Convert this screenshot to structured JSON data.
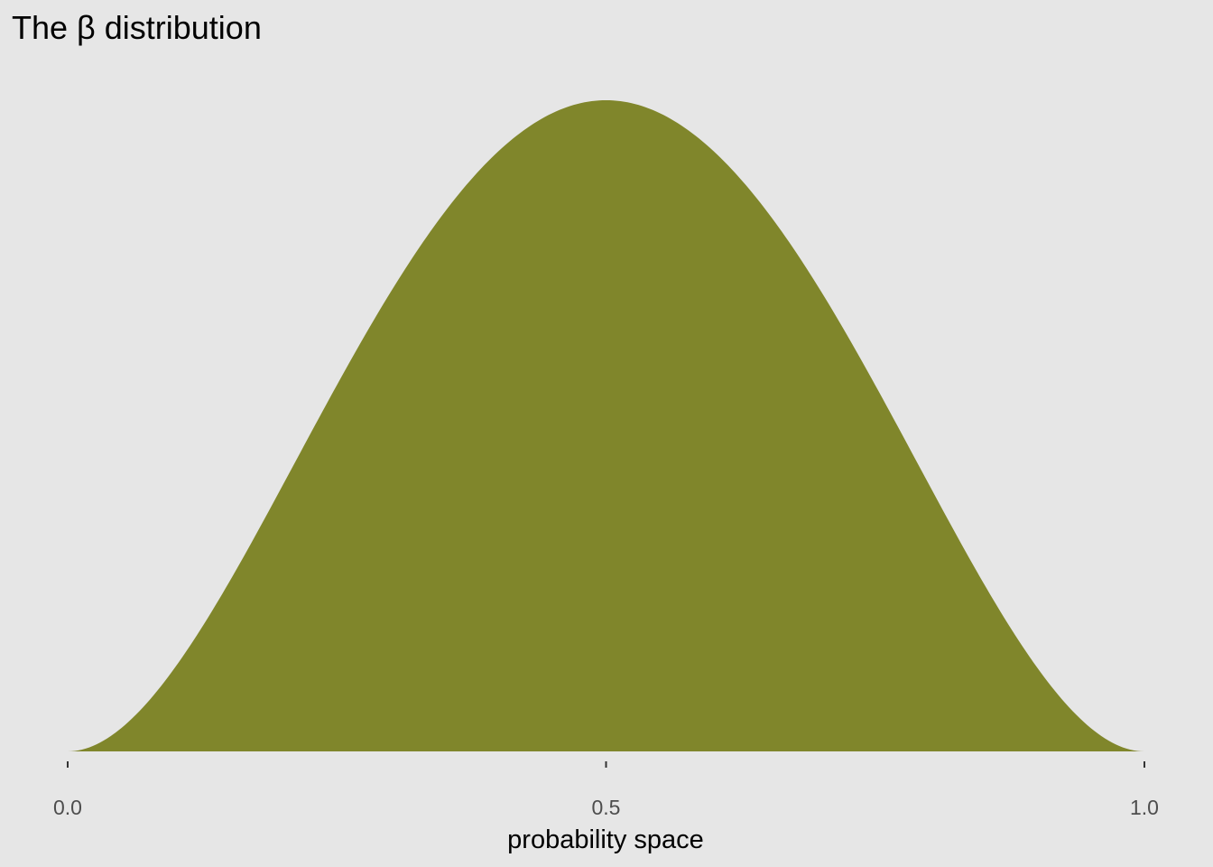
{
  "chart_data": {
    "type": "area",
    "title": "The β distribution",
    "xlabel": "probability space",
    "ylabel": "",
    "xlim": [
      0,
      1
    ],
    "x_ticks": [
      0,
      0.5,
      1
    ],
    "x_tick_labels": [
      "0.0",
      "0.5",
      "1.0"
    ],
    "y_axis_visible": false,
    "grid": false,
    "legend": "none",
    "fill_color": "#80862b",
    "background_color": "#e6e6e6",
    "series": [
      {
        "distribution": "beta",
        "alpha": 3,
        "beta": 3,
        "x": [
          0,
          0.05,
          0.1,
          0.15,
          0.2,
          0.25,
          0.3,
          0.35,
          0.4,
          0.45,
          0.5,
          0.55,
          0.6,
          0.65,
          0.7,
          0.75,
          0.8,
          0.85,
          0.9,
          0.95,
          1
        ],
        "density": [
          0,
          0.0677,
          0.243,
          0.4877,
          0.768,
          1.0547,
          1.323,
          1.5527,
          1.728,
          1.8377,
          1.875,
          1.8377,
          1.728,
          1.5527,
          1.323,
          1.0547,
          0.768,
          0.4877,
          0.243,
          0.0677,
          0
        ]
      }
    ]
  }
}
